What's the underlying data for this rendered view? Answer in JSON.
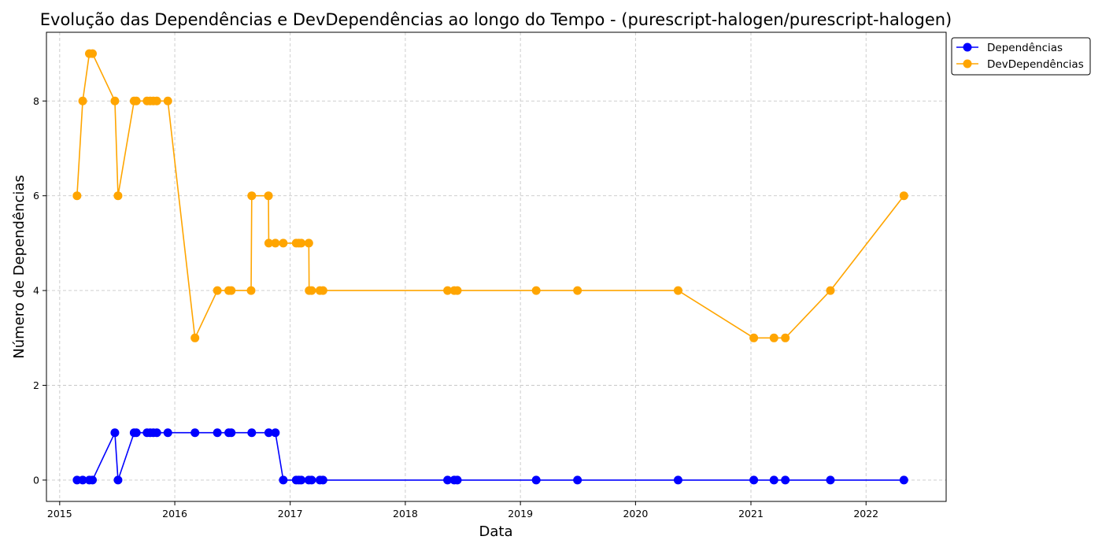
{
  "chart_data": {
    "type": "line",
    "title": "Evolução das Dependências e DevDependências ao longo do Tempo - (purescript-halogen/purescript-halogen)",
    "xlabel": "Data",
    "ylabel": "Número de Dependências",
    "x_ticks": [
      "2015",
      "2016",
      "2017",
      "2018",
      "2019",
      "2020",
      "2021",
      "2022"
    ],
    "y_ticks": [
      0,
      2,
      4,
      6,
      8
    ],
    "xlim": [
      "2014-11-20",
      "2022-09-12"
    ],
    "ylim": [
      -0.45,
      9.45
    ],
    "grid": true,
    "legend_position": "upper right, outside plot",
    "series": [
      {
        "name": "Dependências",
        "color": "#0000ff",
        "points": [
          [
            "2015-02-25",
            0
          ],
          [
            "2015-03-15",
            0
          ],
          [
            "2015-04-05",
            0
          ],
          [
            "2015-04-15",
            0
          ],
          [
            "2015-06-25",
            1
          ],
          [
            "2015-07-05",
            0
          ],
          [
            "2015-08-25",
            1
          ],
          [
            "2015-09-01",
            1
          ],
          [
            "2015-10-05",
            1
          ],
          [
            "2015-10-15",
            1
          ],
          [
            "2015-10-25",
            1
          ],
          [
            "2015-11-05",
            1
          ],
          [
            "2015-12-10",
            1
          ],
          [
            "2016-03-05",
            1
          ],
          [
            "2016-05-15",
            1
          ],
          [
            "2016-06-20",
            1
          ],
          [
            "2016-06-28",
            1
          ],
          [
            "2016-09-01",
            1
          ],
          [
            "2016-10-25",
            1
          ],
          [
            "2016-11-15",
            1
          ],
          [
            "2016-12-10",
            0
          ],
          [
            "2017-01-20",
            0
          ],
          [
            "2017-01-28",
            0
          ],
          [
            "2017-02-05",
            0
          ],
          [
            "2017-03-01",
            0
          ],
          [
            "2017-03-10",
            0
          ],
          [
            "2017-04-05",
            0
          ],
          [
            "2017-04-15",
            0
          ],
          [
            "2018-05-15",
            0
          ],
          [
            "2018-06-05",
            0
          ],
          [
            "2018-06-15",
            0
          ],
          [
            "2019-02-20",
            0
          ],
          [
            "2019-07-01",
            0
          ],
          [
            "2020-05-15",
            0
          ],
          [
            "2021-01-10",
            0
          ],
          [
            "2021-03-15",
            0
          ],
          [
            "2021-04-20",
            0
          ],
          [
            "2021-09-10",
            0
          ],
          [
            "2022-05-01",
            0
          ]
        ]
      },
      {
        "name": "DevDependências",
        "color": "#ffa500",
        "points": [
          [
            "2015-02-25",
            6
          ],
          [
            "2015-03-15",
            8
          ],
          [
            "2015-04-05",
            9
          ],
          [
            "2015-04-15",
            9
          ],
          [
            "2015-06-25",
            8
          ],
          [
            "2015-07-05",
            6
          ],
          [
            "2015-08-25",
            8
          ],
          [
            "2015-09-01",
            8
          ],
          [
            "2015-10-05",
            8
          ],
          [
            "2015-10-15",
            8
          ],
          [
            "2015-10-25",
            8
          ],
          [
            "2015-11-05",
            8
          ],
          [
            "2015-12-10",
            8
          ],
          [
            "2016-03-05",
            3
          ],
          [
            "2016-05-15",
            4
          ],
          [
            "2016-06-20",
            4
          ],
          [
            "2016-06-28",
            4
          ],
          [
            "2016-08-30",
            4
          ],
          [
            "2016-09-01",
            6
          ],
          [
            "2016-10-24",
            6
          ],
          [
            "2016-10-25",
            5
          ],
          [
            "2016-11-15",
            5
          ],
          [
            "2016-12-10",
            5
          ],
          [
            "2017-01-20",
            5
          ],
          [
            "2017-01-28",
            5
          ],
          [
            "2017-02-05",
            5
          ],
          [
            "2017-03-01",
            5
          ],
          [
            "2017-03-02",
            4
          ],
          [
            "2017-03-10",
            4
          ],
          [
            "2017-04-05",
            4
          ],
          [
            "2017-04-15",
            4
          ],
          [
            "2018-05-15",
            4
          ],
          [
            "2018-06-05",
            4
          ],
          [
            "2018-06-15",
            4
          ],
          [
            "2019-02-20",
            4
          ],
          [
            "2019-07-01",
            4
          ],
          [
            "2020-05-15",
            4
          ],
          [
            "2021-01-10",
            3
          ],
          [
            "2021-03-15",
            3
          ],
          [
            "2021-04-20",
            3
          ],
          [
            "2021-09-10",
            4
          ],
          [
            "2022-05-01",
            6
          ]
        ]
      }
    ]
  }
}
